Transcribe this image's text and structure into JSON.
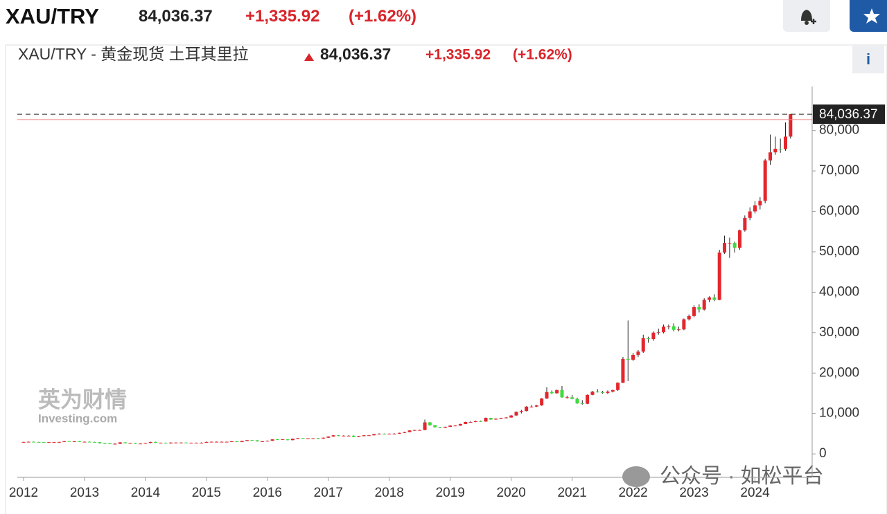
{
  "header": {
    "symbol": "XAU/TRY",
    "price": "84,036.37",
    "change": "+1,335.92",
    "change_pct": "(+1.62%)"
  },
  "watermark": {
    "brand": "英为财情",
    "site": "Investing.com",
    "wechat": "公众号 · 如松平台"
  },
  "info": "i",
  "chart_data": {
    "type": "candlestick",
    "title": "XAU/TRY - 黄金现货 土耳其里拉",
    "change": "+1,335.92",
    "change_pct": "(+1.62%)",
    "last_price": {
      "value": 84036.37,
      "label": "84,036.37"
    },
    "previous_close": 82700.45,
    "up_color": "#e3262d",
    "down_color": "#3ddc3d",
    "ylim": [
      -5800,
      90900
    ],
    "yticks": [
      0,
      {
        "value": 10000,
        "label": "10,000"
      },
      {
        "value": 20000,
        "label": "20,000"
      },
      {
        "value": 30000,
        "label": "30,000"
      },
      {
        "value": 40000,
        "label": "40,000"
      },
      {
        "value": 50000,
        "label": "50,000"
      },
      {
        "value": 60000,
        "label": "60,000"
      },
      {
        "value": 70000,
        "label": "70,000"
      },
      {
        "value": 80000,
        "label": "80,000"
      }
    ],
    "categories": [
      "2012",
      null,
      null,
      null,
      null,
      null,
      null,
      null,
      null,
      null,
      null,
      null,
      "2013",
      null,
      null,
      null,
      null,
      null,
      null,
      null,
      null,
      null,
      null,
      null,
      "2014",
      null,
      null,
      null,
      null,
      null,
      null,
      null,
      null,
      null,
      null,
      null,
      "2015",
      null,
      null,
      null,
      null,
      null,
      null,
      null,
      null,
      null,
      null,
      null,
      "2016",
      null,
      null,
      null,
      null,
      null,
      null,
      null,
      null,
      null,
      null,
      null,
      "2017",
      null,
      null,
      null,
      null,
      null,
      null,
      null,
      null,
      null,
      null,
      null,
      "2018",
      null,
      null,
      null,
      null,
      null,
      null,
      null,
      null,
      null,
      null,
      null,
      "2019",
      null,
      null,
      null,
      null,
      null,
      null,
      null,
      null,
      null,
      null,
      null,
      "2020",
      null,
      null,
      null,
      null,
      null,
      null,
      null,
      null,
      null,
      null,
      null,
      "2021",
      null,
      null,
      null,
      null,
      null,
      null,
      null,
      null,
      null,
      null,
      null,
      "2022",
      null,
      null,
      null,
      null,
      null,
      null,
      null,
      null,
      null,
      null,
      null,
      "2023",
      null,
      null,
      null,
      null,
      null,
      null,
      null,
      null,
      null,
      null,
      null,
      "2024",
      null,
      null,
      null,
      null,
      null,
      null,
      null
    ],
    "ohlc": [
      [
        2900,
        3000,
        2850,
        2950
      ],
      [
        2950,
        3050,
        2900,
        3000
      ],
      [
        3000,
        3050,
        2900,
        2950
      ],
      [
        2950,
        3000,
        2850,
        2900
      ],
      [
        2900,
        2950,
        2800,
        2850
      ],
      [
        2850,
        2950,
        2800,
        2900
      ],
      [
        2900,
        2950,
        2850,
        2900
      ],
      [
        2900,
        3000,
        2850,
        2950
      ],
      [
        2950,
        3200,
        2900,
        3150
      ],
      [
        3150,
        3200,
        3050,
        3100
      ],
      [
        3100,
        3150,
        3050,
        3100
      ],
      [
        3100,
        3150,
        2950,
        3000
      ],
      [
        3000,
        3050,
        2950,
        3000
      ],
      [
        3000,
        3050,
        2900,
        2950
      ],
      [
        2950,
        3000,
        2850,
        2900
      ],
      [
        2900,
        2950,
        2550,
        2650
      ],
      [
        2650,
        2750,
        2550,
        2600
      ],
      [
        2600,
        2650,
        2400,
        2500
      ],
      [
        2500,
        2650,
        2400,
        2500
      ],
      [
        2500,
        2900,
        2450,
        2850
      ],
      [
        2850,
        2900,
        2600,
        2650
      ],
      [
        2650,
        2750,
        2600,
        2700
      ],
      [
        2700,
        2750,
        2500,
        2550
      ],
      [
        2550,
        2600,
        2450,
        2550
      ],
      [
        2550,
        2750,
        2500,
        2700
      ],
      [
        2700,
        3000,
        2650,
        2950
      ],
      [
        2950,
        3000,
        2700,
        2750
      ],
      [
        2750,
        2800,
        2700,
        2750
      ],
      [
        2750,
        2800,
        2550,
        2600
      ],
      [
        2600,
        2850,
        2550,
        2800
      ],
      [
        2800,
        2850,
        2750,
        2800
      ],
      [
        2800,
        2850,
        2750,
        2800
      ],
      [
        2800,
        2850,
        2700,
        2750
      ],
      [
        2750,
        2800,
        2650,
        2750
      ],
      [
        2750,
        2800,
        2650,
        2750
      ],
      [
        2750,
        2850,
        2700,
        2750
      ],
      [
        2750,
        3050,
        2750,
        2950
      ],
      [
        2950,
        3050,
        2900,
        3000
      ],
      [
        3000,
        3050,
        2900,
        3000
      ],
      [
        3000,
        3050,
        2950,
        3000
      ],
      [
        3000,
        3050,
        2900,
        3000
      ],
      [
        3000,
        3150,
        2950,
        3100
      ],
      [
        3100,
        3150,
        2900,
        2950
      ],
      [
        2950,
        3250,
        2900,
        3200
      ],
      [
        3200,
        3450,
        3150,
        3400
      ],
      [
        3400,
        3450,
        3250,
        3350
      ],
      [
        3350,
        3400,
        3050,
        3100
      ],
      [
        3100,
        3150,
        3000,
        3100
      ],
      [
        3100,
        3300,
        3050,
        3250
      ],
      [
        3250,
        3650,
        3200,
        3600
      ],
      [
        3600,
        3650,
        3450,
        3500
      ],
      [
        3500,
        3650,
        3450,
        3600
      ],
      [
        3600,
        3650,
        3350,
        3400
      ],
      [
        3400,
        3800,
        3350,
        3750
      ],
      [
        3750,
        3950,
        3700,
        3900
      ],
      [
        3900,
        3950,
        3800,
        3850
      ],
      [
        3850,
        3900,
        3800,
        3850
      ],
      [
        3850,
        3900,
        3750,
        3850
      ],
      [
        3850,
        3950,
        3700,
        3800
      ],
      [
        3800,
        4050,
        3750,
        4000
      ],
      [
        4000,
        4350,
        3950,
        4300
      ],
      [
        4300,
        4650,
        4250,
        4600
      ],
      [
        4600,
        4650,
        4400,
        4500
      ],
      [
        4500,
        4600,
        4450,
        4500
      ],
      [
        4500,
        4600,
        4400,
        4500
      ],
      [
        4500,
        4550,
        4150,
        4200
      ],
      [
        4200,
        4450,
        4150,
        4400
      ],
      [
        4400,
        4650,
        4350,
        4600
      ],
      [
        4600,
        4700,
        4550,
        4600
      ],
      [
        4600,
        4950,
        4550,
        4900
      ],
      [
        4900,
        5100,
        4850,
        5000
      ],
      [
        5000,
        5050,
        4850,
        4900
      ],
      [
        4900,
        5050,
        4850,
        5000
      ],
      [
        5000,
        5100,
        4900,
        5000
      ],
      [
        5000,
        5250,
        4950,
        5200
      ],
      [
        5200,
        5450,
        5150,
        5400
      ],
      [
        5400,
        5850,
        5350,
        5800
      ],
      [
        5800,
        5950,
        5700,
        5900
      ],
      [
        5900,
        6000,
        5800,
        5900
      ],
      [
        5900,
        8500,
        5850,
        7800
      ],
      [
        7800,
        7900,
        6950,
        7100
      ],
      [
        7100,
        7150,
        6500,
        6600
      ],
      [
        6600,
        6700,
        6400,
        6500
      ],
      [
        6500,
        6750,
        6400,
        6700
      ],
      [
        6700,
        7100,
        6650,
        7000
      ],
      [
        7000,
        7100,
        6900,
        7000
      ],
      [
        7000,
        7450,
        6950,
        7400
      ],
      [
        7400,
        7950,
        7350,
        7900
      ],
      [
        7900,
        8050,
        7750,
        7900
      ],
      [
        7900,
        8200,
        7850,
        8100
      ],
      [
        8100,
        8250,
        7950,
        8000
      ],
      [
        8000,
        9000,
        7950,
        8900
      ],
      [
        8900,
        8950,
        8400,
        8500
      ],
      [
        8500,
        8800,
        8450,
        8700
      ],
      [
        8700,
        8950,
        8650,
        8900
      ],
      [
        8900,
        9100,
        8800,
        9000
      ],
      [
        9000,
        9600,
        8950,
        9500
      ],
      [
        9500,
        10500,
        9450,
        10400
      ],
      [
        10400,
        10900,
        10000,
        10600
      ],
      [
        10600,
        11800,
        10500,
        11700
      ],
      [
        11700,
        12100,
        11500,
        11700
      ],
      [
        11700,
        12100,
        11600,
        12000
      ],
      [
        12000,
        13800,
        11900,
        13700
      ],
      [
        13700,
        16500,
        13600,
        15300
      ],
      [
        15300,
        15700,
        14800,
        15000
      ],
      [
        15000,
        15900,
        14900,
        15800
      ],
      [
        15800,
        16800,
        13900,
        14000
      ],
      [
        14000,
        14400,
        13700,
        14000
      ],
      [
        14000,
        14600,
        13500,
        13600
      ],
      [
        13600,
        13900,
        12400,
        12500
      ],
      [
        12500,
        13300,
        12200,
        12400
      ],
      [
        12400,
        14700,
        12300,
        14600
      ],
      [
        14600,
        15600,
        14500,
        15400
      ],
      [
        15400,
        16000,
        15200,
        15300
      ],
      [
        15300,
        15600,
        14900,
        15100
      ],
      [
        15100,
        15700,
        14800,
        15400
      ],
      [
        15400,
        15900,
        15200,
        15800
      ],
      [
        15800,
        17700,
        15600,
        17600
      ],
      [
        17600,
        24000,
        17500,
        23500
      ],
      [
        23500,
        33000,
        18000,
        23300
      ],
      [
        23300,
        25000,
        23000,
        24500
      ],
      [
        24500,
        25700,
        24000,
        25300
      ],
      [
        25300,
        29500,
        25000,
        28600
      ],
      [
        28600,
        29000,
        27500,
        28400
      ],
      [
        28400,
        30300,
        28000,
        30000
      ],
      [
        30000,
        31000,
        29500,
        30100
      ],
      [
        30100,
        32000,
        29800,
        31500
      ],
      [
        31500,
        32000,
        30800,
        31600
      ],
      [
        31600,
        32300,
        30300,
        30700
      ],
      [
        30700,
        31500,
        30300,
        30800
      ],
      [
        30800,
        33500,
        30600,
        33300
      ],
      [
        33300,
        34500,
        33000,
        34100
      ],
      [
        34100,
        36800,
        33800,
        36300
      ],
      [
        36300,
        37000,
        35000,
        35700
      ],
      [
        35700,
        38500,
        35500,
        38100
      ],
      [
        38100,
        39000,
        37500,
        38700
      ],
      [
        38700,
        39500,
        37800,
        38100
      ],
      [
        38100,
        50500,
        38000,
        49800
      ],
      [
        49800,
        54000,
        49500,
        52200
      ],
      [
        52200,
        53500,
        48500,
        52200
      ],
      [
        52200,
        52500,
        49800,
        51000
      ],
      [
        51000,
        55500,
        50500,
        55300
      ],
      [
        55300,
        59000,
        55000,
        58400
      ],
      [
        58400,
        61000,
        57800,
        60000
      ],
      [
        60000,
        62500,
        59500,
        61500
      ],
      [
        61500,
        63500,
        60500,
        62600
      ],
      [
        62600,
        73000,
        62000,
        72600
      ],
      [
        72600,
        79000,
        71500,
        74600
      ],
      [
        74600,
        78500,
        74000,
        75500
      ],
      [
        75500,
        78000,
        74500,
        75400
      ],
      [
        75400,
        82000,
        75000,
        78500
      ],
      [
        78500,
        84100,
        78000,
        84036.37
      ]
    ]
  }
}
